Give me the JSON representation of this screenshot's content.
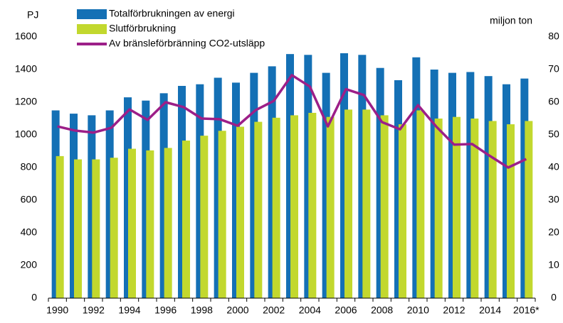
{
  "chart_data": {
    "type": "bar_line",
    "y_label": "PJ",
    "y2_label": "miljon ton",
    "categories": [
      "1990",
      null,
      "1992",
      null,
      "1994",
      null,
      "1996",
      null,
      "1998",
      null,
      "2000",
      null,
      "2002",
      null,
      "2004",
      null,
      "2006",
      null,
      "2008",
      null,
      "2010",
      null,
      "2012",
      null,
      "2014",
      null,
      "2016*"
    ],
    "series": [
      {
        "name": "Totalförbrukningen av energi",
        "color": "#1470b5",
        "type": "bar",
        "values": [
          1150,
          1130,
          1120,
          1150,
          1230,
          1210,
          1255,
          1300,
          1310,
          1350,
          1320,
          1380,
          1420,
          1495,
          1490,
          1380,
          1500,
          1490,
          1410,
          1335,
          1475,
          1400,
          1380,
          1385,
          1360,
          1310,
          1345
        ]
      },
      {
        "name": "Slutförbrukning",
        "color": "#c2d82e",
        "type": "bar",
        "values": [
          870,
          850,
          850,
          860,
          915,
          905,
          920,
          965,
          995,
          1025,
          1050,
          1080,
          1105,
          1120,
          1135,
          1110,
          1155,
          1155,
          1120,
          1065,
          1150,
          1100,
          1110,
          1100,
          1085,
          1065,
          1085
        ]
      },
      {
        "name": "Av bränsleförbränning CO2-utsläpp",
        "color": "#9c1f88",
        "type": "line",
        "axis": "y2",
        "values": [
          52.6,
          51.3,
          50.7,
          52.2,
          57.8,
          54.6,
          60,
          58.5,
          55,
          54.8,
          52.8,
          57.6,
          60.4,
          68.3,
          64.8,
          52.6,
          64,
          62.2,
          53.9,
          51.7,
          59.1,
          52.6,
          47,
          47.2,
          43.5,
          40,
          42.6
        ]
      }
    ],
    "ylim": [
      0,
      1600
    ],
    "yticks": [
      0,
      200,
      400,
      600,
      800,
      1000,
      1200,
      1400,
      1600
    ],
    "y2lim": [
      0,
      80
    ],
    "y2ticks": [
      0,
      10,
      20,
      30,
      40,
      50,
      60,
      70,
      80
    ],
    "grid": false,
    "legend": "top-left"
  }
}
